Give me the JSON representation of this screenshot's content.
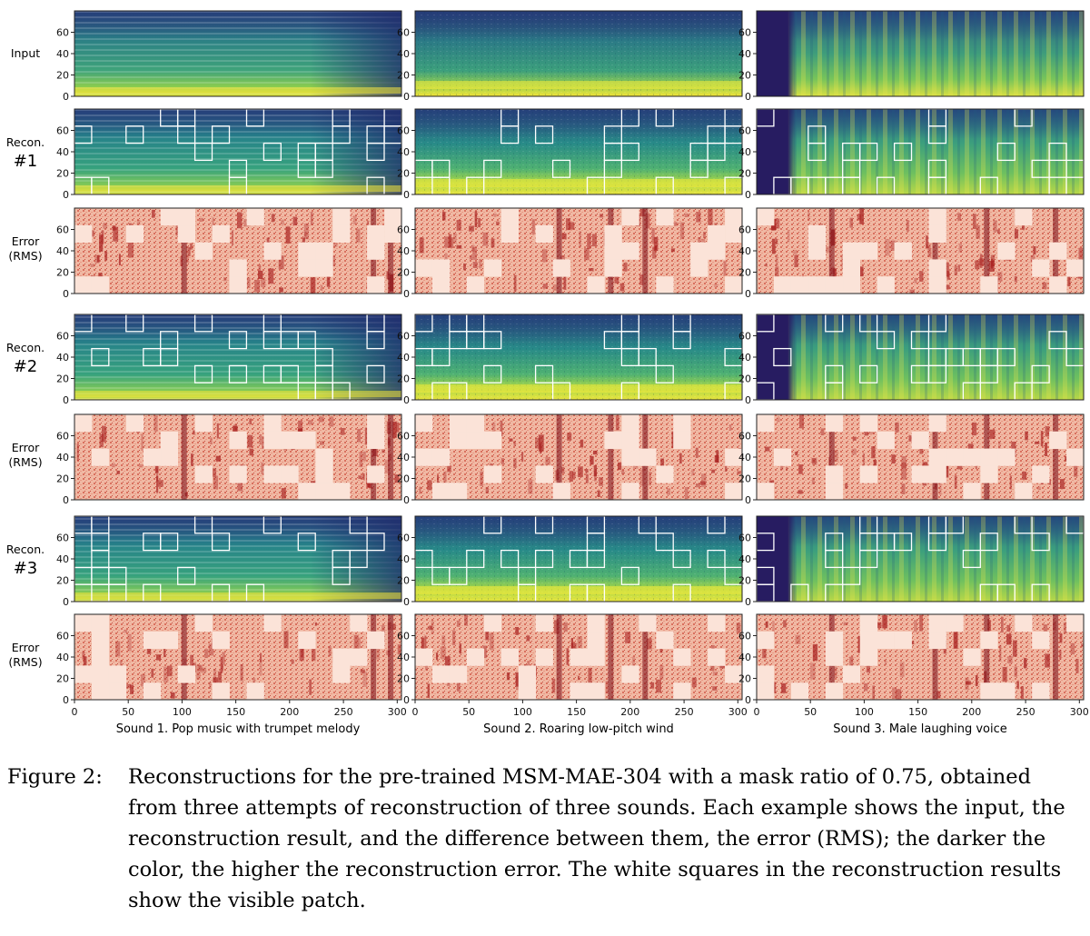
{
  "figure": {
    "row_labels": [
      [
        "Input"
      ],
      [
        "Recon.",
        "#1"
      ],
      [
        "Error",
        "(RMS)"
      ],
      [
        "Recon.",
        "#2"
      ],
      [
        "Error",
        "(RMS)"
      ],
      [
        "Recon.",
        "#3"
      ],
      [
        "Error",
        "(RMS)"
      ]
    ],
    "row_kinds": [
      "input",
      "recon",
      "error",
      "recon",
      "error",
      "recon",
      "error"
    ],
    "column_titles": [
      "Sound 1. Pop music with trumpet melody",
      "Sound 2. Roaring low-pitch wind",
      "Sound 3. Male laughing voice"
    ],
    "y_ticks": [
      "0",
      "20",
      "40",
      "60"
    ],
    "x_ticks": [
      "0",
      "50",
      "100",
      "150",
      "200",
      "250",
      "300"
    ],
    "y_range": [
      0,
      80
    ],
    "x_range": [
      0,
      304
    ],
    "patch_grid": {
      "cols": 19,
      "rows": 5
    },
    "visible_patch_count_per_recon": 24,
    "colors": {
      "spectrogram_low": "#2f1b5e",
      "spectrogram_mid": "#21918c",
      "spectrogram_high": "#f0e442",
      "error_low": "#fbe3d8",
      "error_high": "#7a0a14",
      "patch_border": "#ffffff"
    }
  },
  "caption": {
    "label": "Figure 2:",
    "text": "Reconstructions for the pre-trained MSM-MAE-304 with a mask ratio of 0.75, obtained from three attempts of reconstruction of three sounds. Each example shows the input, the reconstruction result, and the difference between them, the error (RMS); the darker the color, the higher the reconstruction error. The white squares in the reconstruction results show the visible patch."
  }
}
